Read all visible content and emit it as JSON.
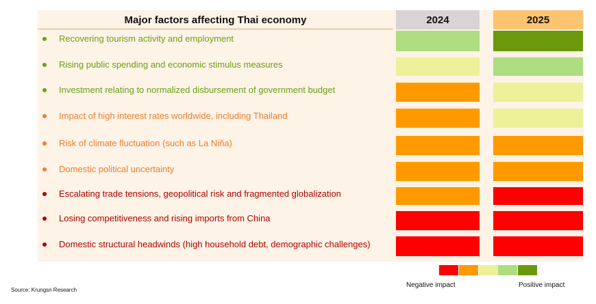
{
  "chart_data": {
    "type": "heatmap",
    "title": "Major factors affecting Thai economy",
    "columns": [
      "2024",
      "2025"
    ],
    "scale": {
      "levels": [
        {
          "level": 1,
          "color": "#ff0000"
        },
        {
          "level": 2,
          "color": "#ff9900"
        },
        {
          "level": 3,
          "color": "#eef09a"
        },
        {
          "level": 4,
          "color": "#aedd82"
        },
        {
          "level": 5,
          "color": "#6a9a0c"
        }
      ],
      "negative_label": "Negative impact",
      "positive_label": "Positive impact"
    },
    "rows": [
      {
        "label": "Recovering tourism activity and employment",
        "label_color": "#6aa017",
        "values": [
          4,
          5
        ]
      },
      {
        "label": "Rising public spending and economic stimulus measures",
        "label_color": "#6aa017",
        "values": [
          3,
          4
        ]
      },
      {
        "label": "Investment relating to normalized disbursement of government budget",
        "label_color": "#6aa017",
        "values": [
          2,
          3
        ]
      },
      {
        "label": "Impact of high interest rates worldwide, including Thailand",
        "label_color": "#ed7d31",
        "values": [
          2,
          3
        ]
      },
      {
        "label": "Risk of climate fluctuation (such as La Niña)",
        "label_color": "#ed7d31",
        "values": [
          2,
          2
        ]
      },
      {
        "label": "Domestic political uncertainty",
        "label_color": "#ed7d31",
        "values": [
          2,
          2
        ]
      },
      {
        "label": "Escalating trade tensions, geopolitical risk and fragmented globalization",
        "label_color": "#b00000",
        "values": [
          2,
          1
        ]
      },
      {
        "label": "Losing competitiveness and rising imports from China",
        "label_color": "#b00000",
        "values": [
          1,
          1
        ]
      },
      {
        "label": "Domestic structural headwinds (high household debt, demographic challenges)",
        "label_color": "#b00000",
        "values": [
          1,
          1
        ]
      }
    ],
    "header_colors": [
      "#d9d3d3",
      "#fcc46f"
    ]
  },
  "source": "Source: Krungsri Research"
}
